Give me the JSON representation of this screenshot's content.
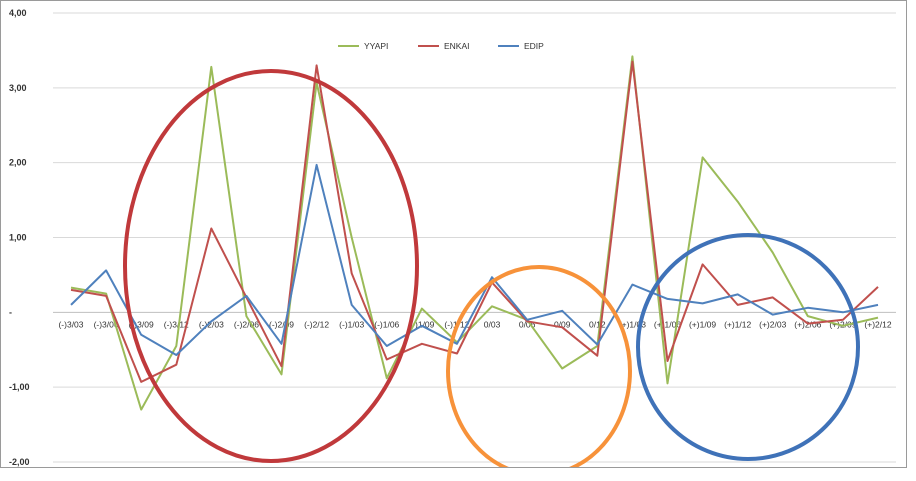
{
  "chart_data": {
    "type": "line",
    "categories": [
      "(-)3/03",
      "(-)3/06",
      "(-)3/09",
      "(-)3/12",
      "(-)2/03",
      "(-)2/06",
      "(-)2/09",
      "(-)2/12",
      "(-)1/03",
      "(-)1/06",
      "(-)1/09",
      "(-)1/12",
      "0/03",
      "0/06",
      "0/09",
      "0/12",
      "(+)1/03",
      "(+)1/06",
      "(+)1/09",
      "(+)1/12",
      "(+)2/03",
      "(+)2/06",
      "(+)2/09",
      "(+)2/12"
    ],
    "ylim": [
      -2,
      4
    ],
    "yticks": [
      "4,00",
      "3,00",
      "2,00",
      "1,00",
      "-",
      "-1,00",
      "-2,00"
    ],
    "ytick_values": [
      4,
      3,
      2,
      1,
      0,
      -1,
      -2
    ],
    "legend_position": "top",
    "gridlines": true,
    "series": [
      {
        "name": "YYAPI",
        "color": "#9bbb59",
        "values": [
          0.33,
          0.25,
          -1.3,
          -0.45,
          3.28,
          -0.05,
          -0.83,
          3.07,
          1.0,
          -0.88,
          0.05,
          -0.4,
          0.08,
          -0.1,
          -0.75,
          -0.45,
          3.42,
          -0.95,
          2.07,
          1.48,
          0.8,
          -0.05,
          -0.18,
          -0.07
        ]
      },
      {
        "name": "ENKAI",
        "color": "#c0504d",
        "values": [
          0.3,
          0.22,
          -0.93,
          -0.7,
          1.12,
          0.2,
          -0.72,
          3.3,
          0.52,
          -0.63,
          -0.42,
          -0.55,
          0.4,
          -0.12,
          -0.2,
          -0.58,
          3.35,
          -0.65,
          0.64,
          0.1,
          0.2,
          -0.15,
          -0.1,
          0.34
        ]
      },
      {
        "name": "EDIP",
        "color": "#4f81bd",
        "values": [
          0.1,
          0.56,
          -0.3,
          -0.57,
          -0.12,
          0.22,
          -0.42,
          1.97,
          0.1,
          -0.45,
          -0.18,
          -0.42,
          0.47,
          -0.1,
          0.02,
          -0.43,
          0.37,
          0.18,
          0.12,
          0.24,
          -0.03,
          0.06,
          0.0,
          0.1
        ]
      }
    ],
    "annotations": [
      {
        "shape": "ellipse",
        "color": "#c0393b"
      },
      {
        "shape": "ellipse",
        "color": "#f7923a"
      },
      {
        "shape": "ellipse",
        "color": "#3f72b8"
      }
    ]
  }
}
